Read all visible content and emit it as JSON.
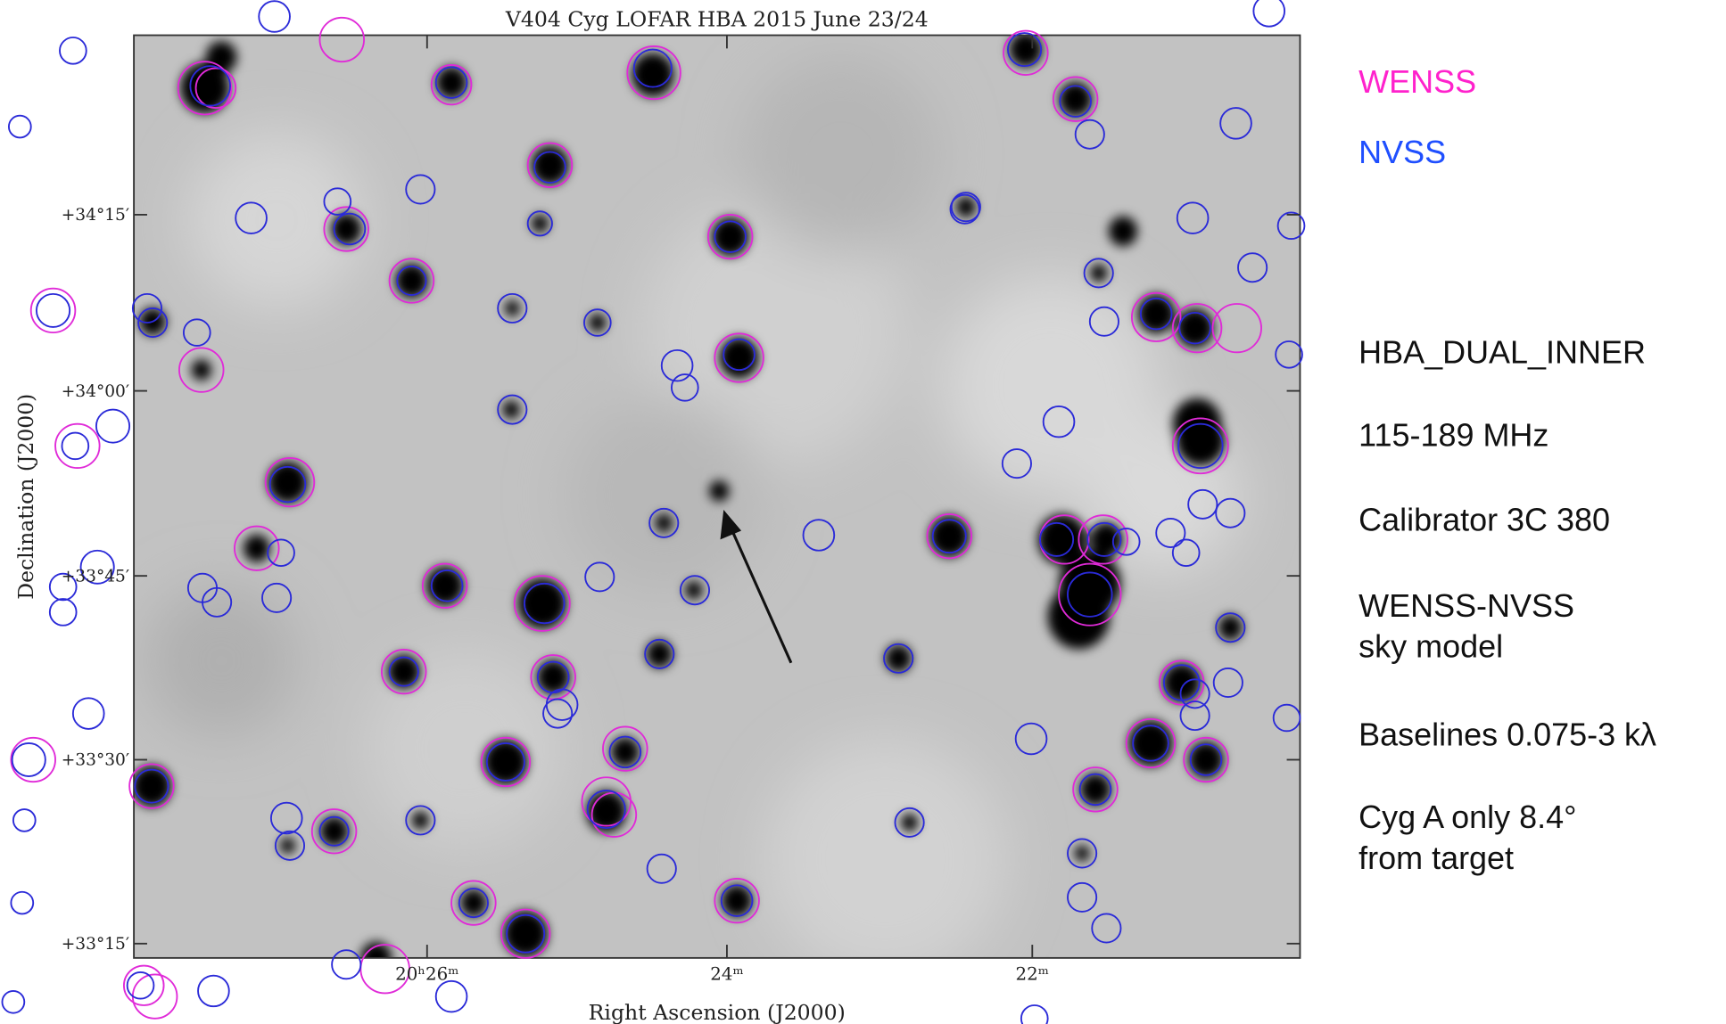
{
  "figure": {
    "title": "V404 Cyg LOFAR HBA 2015 June 23/24",
    "y_axis_label": "Declination (J2000)",
    "x_axis_label": "Right Ascension (J2000)",
    "y_tick_labels": [
      "+34°15′",
      "+34°00′",
      "+33°45′",
      "+33°30′",
      "+33°15′"
    ],
    "x_tick_labels": [
      "20ʰ26ᵐ",
      "24ᵐ",
      "22ᵐ"
    ]
  },
  "legend": [
    "WENSS",
    "NVSS"
  ],
  "notes": [
    [
      "HBA_DUAL_INNER"
    ],
    [
      "115-189 MHz"
    ],
    [
      "Calibrator 3C 380"
    ],
    [
      "WENSS-NVSS",
      "sky model"
    ],
    [
      "Baselines 0.075-3 kλ"
    ],
    [
      "Cyg A only 8.4°",
      "from target"
    ]
  ]
}
